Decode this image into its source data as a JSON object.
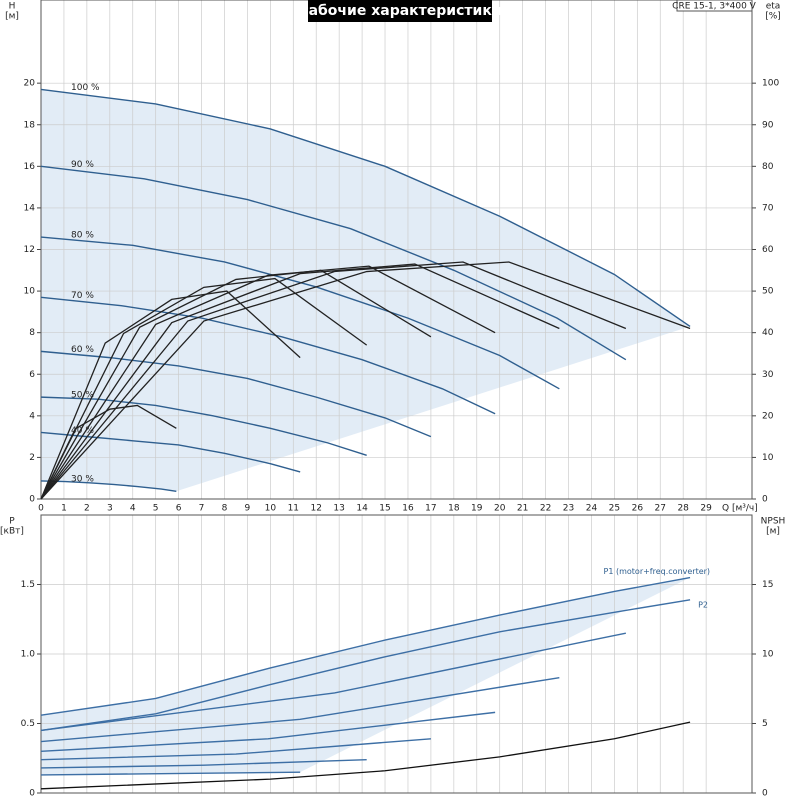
{
  "chart_data": [
    {
      "type": "line",
      "title": "Рабочие характеристики",
      "annotation": "CRE 15-1, 3*400 V",
      "y_label": "H",
      "y_unit": "[м]",
      "y2_label": "eta",
      "y2_unit": "[%]",
      "x_label": "Q [м³/ч]",
      "xlim": [
        0,
        31
      ],
      "ylim": [
        0,
        24
      ],
      "y2lim": [
        0,
        120
      ],
      "xticks": [
        0,
        1,
        2,
        3,
        4,
        5,
        6,
        7,
        8,
        9,
        10,
        11,
        12,
        13,
        14,
        15,
        16,
        17,
        18,
        19,
        20,
        21,
        22,
        23,
        24,
        25,
        26,
        27,
        28,
        29
      ],
      "yticks": [
        0,
        2,
        4,
        6,
        8,
        10,
        12,
        14,
        16,
        18,
        20
      ],
      "y2ticks": [
        0,
        10,
        20,
        30,
        40,
        50,
        60,
        70,
        80,
        90,
        100
      ],
      "grid": true,
      "series": [
        {
          "name": "100 %",
          "color": "#2f5f8f",
          "x": [
            0,
            5,
            10,
            15,
            20,
            25,
            28.3
          ],
          "values": [
            19.7,
            19.0,
            17.8,
            16.0,
            13.6,
            10.8,
            8.3
          ]
        },
        {
          "name": "90 %",
          "color": "#2f5f8f",
          "x": [
            0,
            4.5,
            9,
            13.5,
            18,
            22.5,
            25.5
          ],
          "values": [
            16.0,
            15.4,
            14.4,
            13.0,
            11.0,
            8.7,
            6.7
          ]
        },
        {
          "name": "80 %",
          "color": "#2f5f8f",
          "x": [
            0,
            4,
            8,
            12,
            16,
            20,
            22.6
          ],
          "values": [
            12.6,
            12.2,
            11.4,
            10.2,
            8.7,
            6.9,
            5.3
          ]
        },
        {
          "name": "70 %",
          "color": "#2f5f8f",
          "x": [
            0,
            3.5,
            7,
            10.5,
            14,
            17.5,
            19.8
          ],
          "values": [
            9.7,
            9.3,
            8.7,
            7.8,
            6.7,
            5.3,
            4.1
          ]
        },
        {
          "name": "60 %",
          "color": "#2f5f8f",
          "x": [
            0,
            3,
            6,
            9,
            12,
            15,
            17
          ],
          "values": [
            7.1,
            6.8,
            6.4,
            5.8,
            4.9,
            3.9,
            3.0
          ]
        },
        {
          "name": "50 %",
          "color": "#2f5f8f",
          "x": [
            0,
            2.5,
            5,
            7.5,
            10,
            12.5,
            14.2
          ],
          "values": [
            4.9,
            4.8,
            4.5,
            4.0,
            3.4,
            2.7,
            2.1
          ]
        },
        {
          "name": "40 %",
          "color": "#2f5f8f",
          "x": [
            0,
            2,
            4,
            6,
            8,
            10,
            11.3
          ],
          "values": [
            3.2,
            3.0,
            2.8,
            2.6,
            2.2,
            1.7,
            1.3
          ]
        },
        {
          "name": "30 %",
          "color": "#2f5f8f",
          "x": [
            0,
            1.05,
            2.1,
            3.15,
            4.2,
            5.25,
            5.9
          ],
          "values": [
            0.87,
            0.84,
            0.78,
            0.7,
            0.6,
            0.48,
            0.37
          ]
        },
        {
          "color": "#222222",
          "axis": "y2",
          "x": [
            0,
            7.1,
            14.2,
            20.4,
            28.3
          ],
          "values": [
            0,
            42.8,
            54.7,
            57,
            41
          ]
        },
        {
          "color": "#222222",
          "axis": "y2",
          "x": [
            0,
            6.4,
            12.8,
            18.4,
            25.5
          ],
          "values": [
            0,
            42.8,
            54.7,
            57,
            41
          ]
        },
        {
          "color": "#222222",
          "axis": "y2",
          "x": [
            0,
            5.7,
            11.3,
            16.3,
            22.6
          ],
          "values": [
            0,
            42.4,
            54.2,
            56.5,
            41
          ]
        },
        {
          "color": "#222222",
          "axis": "y2",
          "x": [
            0,
            5.0,
            9.9,
            14.3,
            19.8
          ],
          "values": [
            0,
            42,
            53.8,
            56,
            40
          ]
        },
        {
          "color": "#222222",
          "axis": "y2",
          "x": [
            0,
            4.3,
            8.5,
            12.2,
            17
          ],
          "values": [
            0,
            41.3,
            52.8,
            55,
            39
          ]
        },
        {
          "color": "#222222",
          "axis": "y2",
          "x": [
            0,
            3.6,
            7.1,
            10.2,
            14.2
          ],
          "values": [
            0,
            39.8,
            50.9,
            53,
            37
          ]
        },
        {
          "color": "#222222",
          "axis": "y2",
          "x": [
            0,
            2.8,
            5.7,
            8.1,
            11.3
          ],
          "values": [
            0,
            37.5,
            48,
            50,
            34
          ]
        },
        {
          "color": "#222222",
          "axis": "y2",
          "x": [
            0,
            1.5,
            3.0,
            4.2,
            5.9
          ],
          "values": [
            0,
            16.9,
            21.6,
            22.5,
            17
          ]
        }
      ]
    },
    {
      "type": "line",
      "y_label": "P",
      "y_unit": "[кВт]",
      "y2_label": "NPSH",
      "y2_unit": "[м]",
      "xlim": [
        0,
        31
      ],
      "ylim": [
        0,
        2
      ],
      "y2lim": [
        0,
        20
      ],
      "xticks": [
        0,
        1,
        2,
        3,
        4,
        5,
        6,
        7,
        8,
        9,
        10,
        11,
        12,
        13,
        14,
        15,
        16,
        17,
        18,
        19,
        20,
        21,
        22,
        23,
        24,
        25,
        26,
        27,
        28,
        29
      ],
      "yticks": [
        0,
        0.5,
        {
          "value": 1,
          "label": "1.0"
        },
        1.5
      ],
      "y2ticks": [
        0,
        5,
        10,
        15
      ],
      "grid": true,
      "series": [
        {
          "name": "P1 (motor+freq.converter)",
          "color": "#3d6fa5",
          "x": [
            0,
            5,
            10,
            15,
            20,
            25,
            28.3
          ],
          "values": [
            0.56,
            0.68,
            0.9,
            1.1,
            1.28,
            1.45,
            1.55
          ]
        },
        {
          "name": "P2",
          "color": "#3d6fa5",
          "x": [
            0,
            5,
            10,
            15,
            20,
            25,
            28.3
          ],
          "values": [
            0.45,
            0.57,
            0.78,
            0.98,
            1.16,
            1.3,
            1.39
          ]
        },
        {
          "color": "#3d6fa5",
          "x": [
            0,
            12.8,
            25.5
          ],
          "values": [
            0.45,
            0.72,
            1.15
          ]
        },
        {
          "color": "#3d6fa5",
          "x": [
            0,
            11.3,
            22.6
          ],
          "values": [
            0.37,
            0.53,
            0.83
          ]
        },
        {
          "color": "#3d6fa5",
          "x": [
            0,
            9.9,
            19.8
          ],
          "values": [
            0.3,
            0.39,
            0.58
          ]
        },
        {
          "color": "#3d6fa5",
          "x": [
            0,
            8.5,
            17
          ],
          "values": [
            0.24,
            0.28,
            0.39
          ]
        },
        {
          "color": "#3d6fa5",
          "x": [
            0,
            7.1,
            14.2
          ],
          "values": [
            0.18,
            0.2,
            0.24
          ]
        },
        {
          "color": "#3d6fa5",
          "x": [
            0,
            5.7,
            11.3
          ],
          "values": [
            0.13,
            0.14,
            0.15
          ]
        },
        {
          "color": "#111111",
          "axis": "y2",
          "x": [
            0,
            10,
            15,
            20,
            25,
            28.3
          ],
          "values": [
            0.3,
            1,
            1.6,
            2.6,
            3.9,
            5.1
          ]
        }
      ]
    }
  ]
}
